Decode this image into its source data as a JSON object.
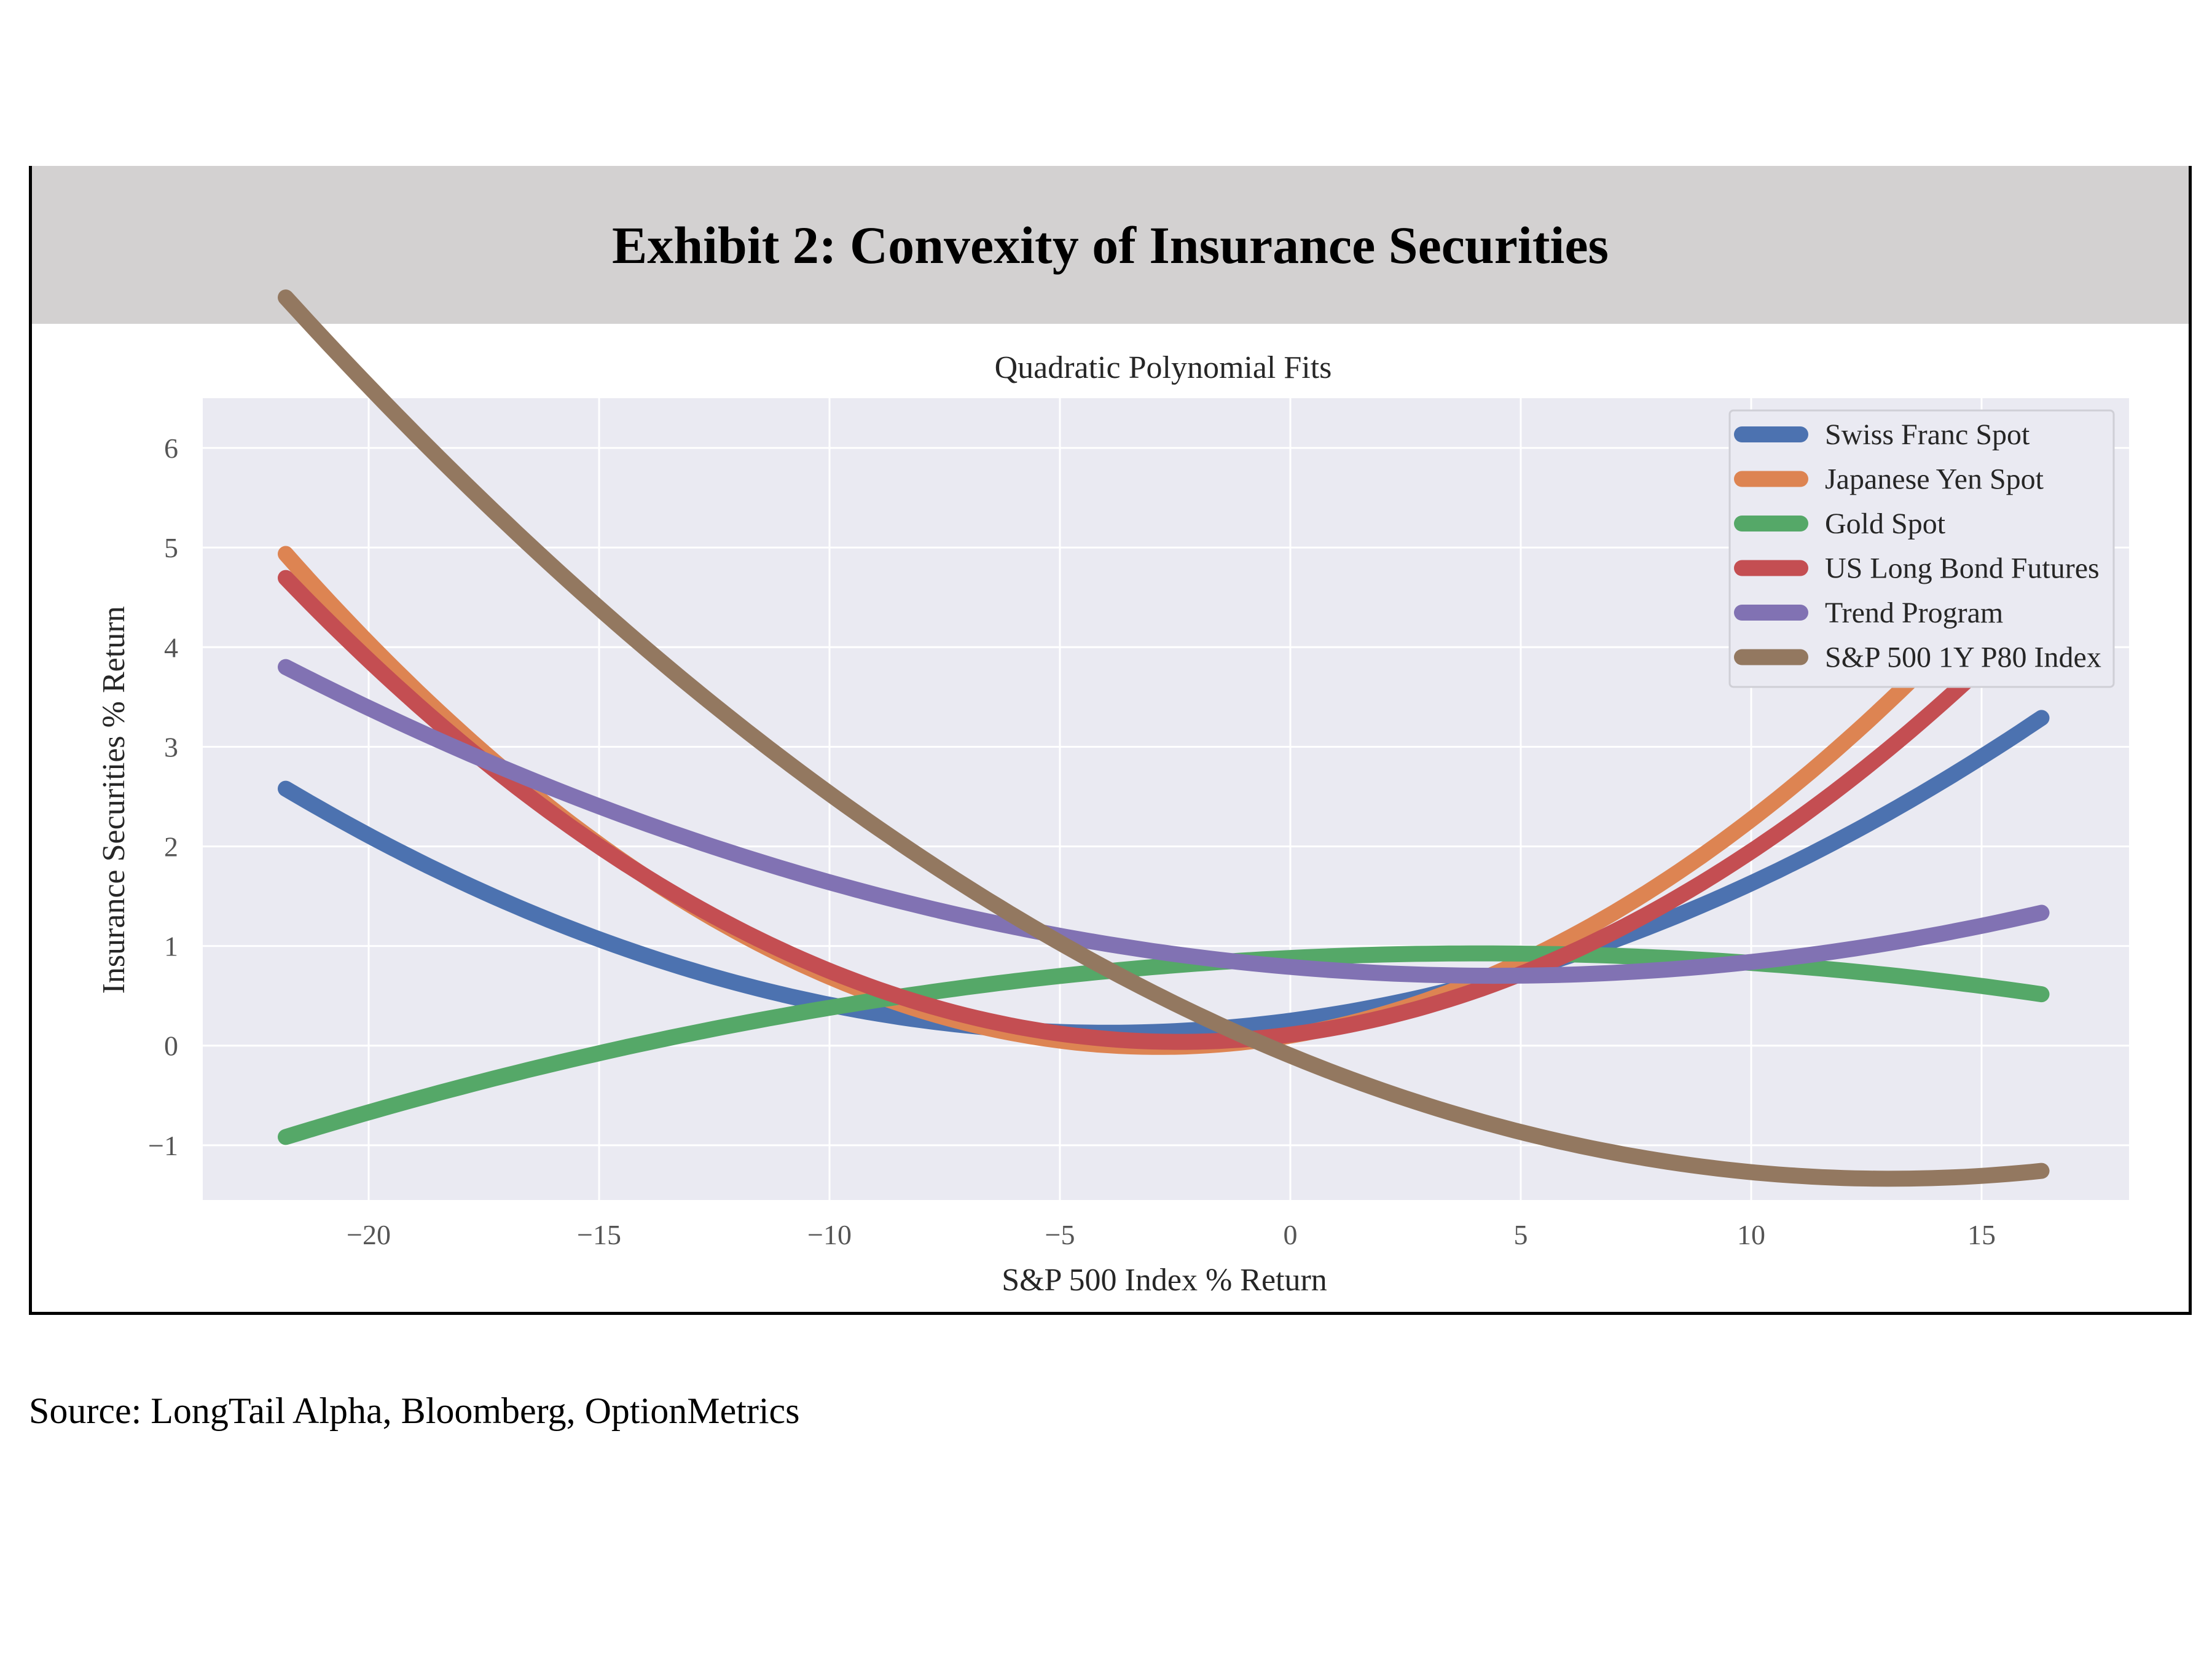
{
  "exhibit": {
    "title": "Exhibit 2: Convexity of Insurance Securities",
    "source": "Source: LongTail Alpha, Bloomberg, OptionMetrics"
  },
  "chart_data": {
    "type": "line",
    "title": "Quadratic Polynomial Fits",
    "xlabel": "S&P 500 Index % Return",
    "ylabel": "Insurance Securities % Return",
    "xlim": [
      -23.6,
      18.2
    ],
    "ylim": [
      -1.55,
      6.5
    ],
    "xticks": [
      -20,
      -15,
      -10,
      -5,
      0,
      5,
      10,
      15
    ],
    "yticks": [
      -1,
      0,
      1,
      2,
      3,
      4,
      5,
      6
    ],
    "xtick_labels": [
      "−20",
      "−15",
      "−10",
      "−5",
      "0",
      "5",
      "10",
      "15"
    ],
    "ytick_labels": [
      "−1",
      "0",
      "1",
      "2",
      "3",
      "4",
      "5",
      "6"
    ],
    "grid": true,
    "legend_position": "top-right",
    "background": "#eaeaf2",
    "x_range": [
      -21.8,
      16.3
    ],
    "series": [
      {
        "name": "Swiss Franc Spot",
        "color": "#4c72b0",
        "coef": [
          0.25,
          0.061,
          0.0077
        ]
      },
      {
        "name": "Japanese Yen Spot",
        "color": "#dd8452",
        "coef": [
          0.1,
          0.079,
          0.0138
        ]
      },
      {
        "name": "Gold Spot",
        "color": "#55a868",
        "coef": [
          0.88,
          0.0225,
          -0.00275
        ]
      },
      {
        "name": "US Long Bond Futures",
        "color": "#c44e52",
        "coef": [
          0.11,
          0.06,
          0.0124
        ]
      },
      {
        "name": "Trend Program",
        "color": "#8172b3",
        "coef": [
          0.79,
          -0.04,
          0.0045
        ]
      },
      {
        "name": "S&P 500 1Y P80 Index",
        "color": "#937860",
        "coef": [
          -0.1,
          -0.19,
          0.0073
        ]
      }
    ]
  }
}
